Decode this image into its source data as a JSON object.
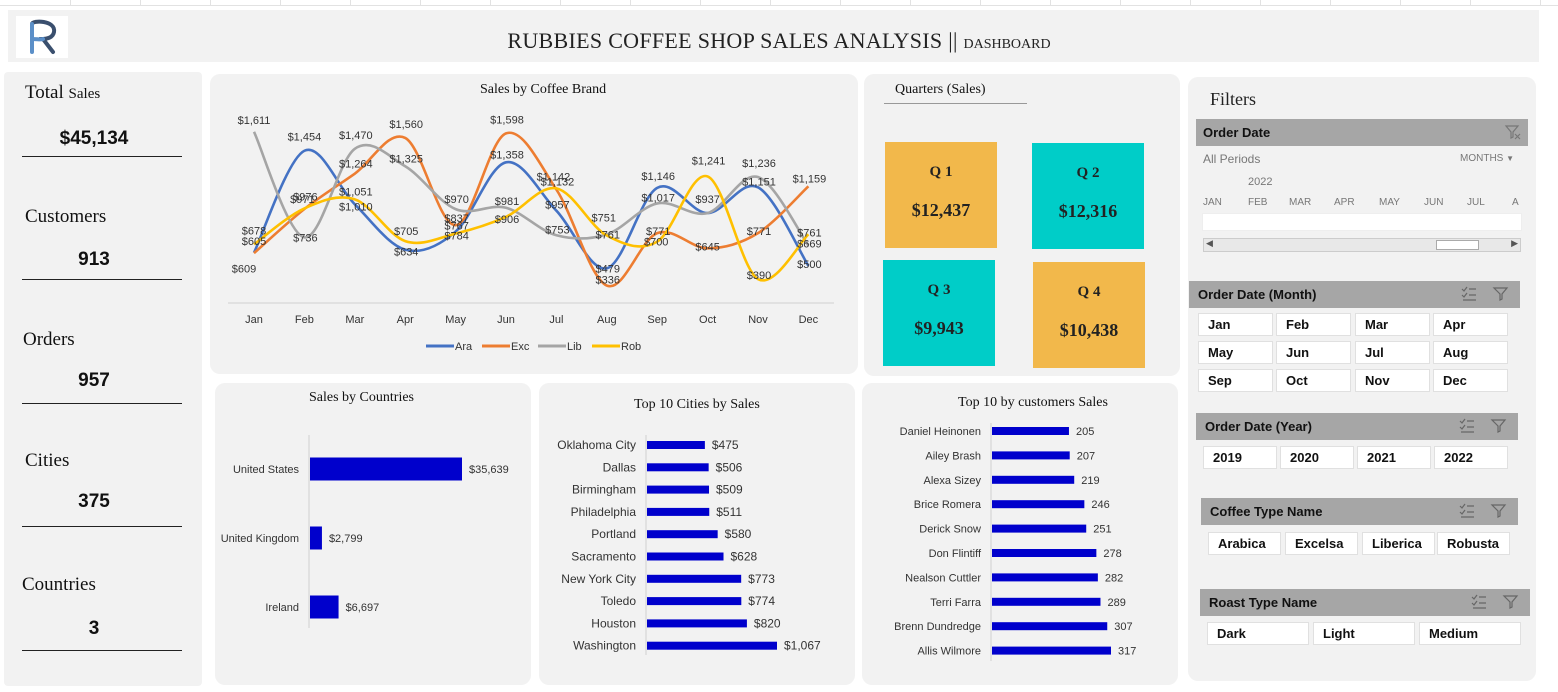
{
  "header": {
    "title": "RUBBIES COFFEE SHOP SALES ANALYSIS ||",
    "subtitle": "DASHBOARD",
    "logo_text": "R"
  },
  "kpis": [
    {
      "label_main": "Total",
      "label_small": "Sales",
      "value": "$45,134"
    },
    {
      "label_main": "Customers",
      "label_small": "",
      "value": "913"
    },
    {
      "label_main": "Orders",
      "label_small": "",
      "value": "957"
    },
    {
      "label_main": "Cities",
      "label_small": "",
      "value": "375"
    },
    {
      "label_main": "Countries",
      "label_small": "",
      "value": "3"
    }
  ],
  "quarters": {
    "title": "Quarters (Sales)",
    "tiles": [
      {
        "label": "Q 1",
        "value": "$12,437",
        "color": "#f2b84b"
      },
      {
        "label": "Q 2",
        "value": "$12,316",
        "color": "#00cdc8"
      },
      {
        "label": "Q 3",
        "value": "$9,943",
        "color": "#00cdc8"
      },
      {
        "label": "Q 4",
        "value": "$10,438",
        "color": "#f2b84b"
      }
    ]
  },
  "chart_data": [
    {
      "type": "line",
      "title": "Sales by Coffee Brand",
      "categories": [
        "Jan",
        "Feb",
        "Mar",
        "Apr",
        "May",
        "Jun",
        "Jul",
        "Aug",
        "Sep",
        "Oct",
        "Nov",
        "Dec"
      ],
      "series": [
        {
          "name": "Ara",
          "color": "#4472c4",
          "values": [
            609,
            1454,
            1010,
            634,
            784,
            1358,
            957,
            479,
            1146,
            937,
            1151,
            500
          ]
        },
        {
          "name": "Exc",
          "color": "#ed7d31",
          "values": [
            605,
            971,
            1264,
            1560,
            837,
            1598,
            1132,
            336,
            771,
            645,
            771,
            1159
          ]
        },
        {
          "name": "Lib",
          "color": "#a5a5a5",
          "values": [
            1611,
            736,
            1470,
            1325,
            970,
            981,
            753,
            761,
            1017,
            937,
            1236,
            669
          ]
        },
        {
          "name": "Rob",
          "color": "#ffc000",
          "values": [
            678,
            976,
            1051,
            705,
            767,
            906,
            1142,
            751,
            700,
            1241,
            390,
            761
          ]
        }
      ],
      "data_labels": [
        "$1,611",
        "$678",
        "$605",
        "$609",
        "$1,454",
        "$971",
        "$976",
        "$736",
        "$1,470",
        "$1,264",
        "$1,051",
        "$1,010",
        "$1,560",
        "$1,325",
        "$705",
        "$634",
        "$970",
        "$837",
        "$767",
        "$784",
        "$1,598",
        "$1,358",
        "$981",
        "$906",
        "$1,142",
        "$1,132",
        "$957",
        "$753",
        "$751",
        "$761",
        "$479",
        "$336",
        "$1,146",
        "$1,017",
        "$771",
        "$700",
        "$1,241",
        "$937",
        "$645",
        "$1,236",
        "$1,151",
        "$771",
        "$390",
        "$1,159",
        "$761",
        "$669",
        "$500"
      ],
      "ylim": [
        200,
        1800
      ],
      "legend": "bottom"
    },
    {
      "type": "bar",
      "orientation": "horizontal",
      "title": "Sales by Countries",
      "categories": [
        "United States",
        "United Kingdom",
        "Ireland"
      ],
      "values": [
        35639,
        2799,
        6697
      ],
      "value_labels": [
        "$35,639",
        "$2,799",
        "$6,697"
      ],
      "color": "#0000cc"
    },
    {
      "type": "bar",
      "orientation": "horizontal",
      "title": "Top 10 Cities by Sales",
      "categories": [
        "Oklahoma City",
        "Dallas",
        "Birmingham",
        "Philadelphia",
        "Portland",
        "Sacramento",
        "New York City",
        "Toledo",
        "Houston",
        "Washington"
      ],
      "values": [
        475,
        506,
        509,
        511,
        580,
        628,
        773,
        774,
        820,
        1067
      ],
      "value_labels": [
        "$475",
        "$506",
        "$509",
        "$511",
        "$580",
        "$628",
        "$773",
        "$774",
        "$820",
        "$1,067"
      ],
      "color": "#0000cc"
    },
    {
      "type": "bar",
      "orientation": "horizontal",
      "title": "Top 10 by customers Sales",
      "categories": [
        "Daniel Heinonen",
        "Ailey Brash",
        "Alexa Sizey",
        "Brice Romera",
        "Derick Snow",
        "Don Flintiff",
        "Nealson Cuttler",
        "Terri Farra",
        "Brenn Dundredge",
        "Allis Wilmore"
      ],
      "values": [
        205,
        207,
        219,
        246,
        251,
        278,
        282,
        289,
        307,
        317
      ],
      "value_labels": [
        "205",
        "207",
        "219",
        "246",
        "251",
        "278",
        "282",
        "289",
        "307",
        "317"
      ],
      "color": "#0000cc"
    }
  ],
  "filters": {
    "title": "Filters",
    "order_date": {
      "label": "Order Date",
      "period": "All Periods",
      "unit": "MONTHS",
      "year": "2022",
      "months": [
        "JAN",
        "FEB",
        "MAR",
        "APR",
        "MAY",
        "JUN",
        "JUL",
        "A"
      ]
    },
    "order_month": {
      "label": "Order Date (Month)",
      "items": [
        "Jan",
        "Feb",
        "Mar",
        "Apr",
        "May",
        "Jun",
        "Jul",
        "Aug",
        "Sep",
        "Oct",
        "Nov",
        "Dec"
      ]
    },
    "order_year": {
      "label": "Order Date (Year)",
      "items": [
        "2019",
        "2020",
        "2021",
        "2022"
      ]
    },
    "coffee_type": {
      "label": "Coffee Type Name",
      "items": [
        "Arabica",
        "Excelsa",
        "Liberica",
        "Robusta"
      ]
    },
    "roast_type": {
      "label": "Roast Type Name",
      "items": [
        "Dark",
        "Light",
        "Medium"
      ]
    }
  }
}
